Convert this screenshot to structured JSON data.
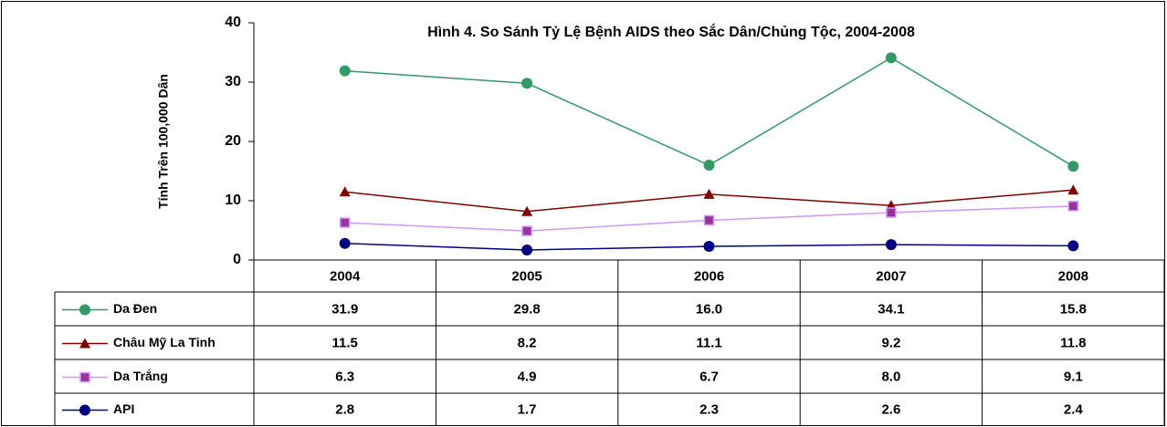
{
  "chart_data": {
    "type": "line",
    "title": "Hình 4. So Sánh Tỷ Lệ Bệnh AIDS theo Sắc Dân/Chủng Tộc, 2004-2008",
    "y_label": "Tính Trên 100,000 Dân",
    "categories": [
      "2004",
      "2005",
      "2006",
      "2007",
      "2008"
    ],
    "ylim": [
      0,
      40
    ],
    "yticks": [
      0,
      10,
      20,
      30,
      40
    ],
    "grid": false,
    "series": [
      {
        "name": "Da Đen",
        "color": "#339966",
        "marker": "circle",
        "marker_color": "#339966",
        "values": [
          31.9,
          29.8,
          16.0,
          34.1,
          15.8
        ],
        "value_labels": [
          "31.9",
          "29.8",
          "16.0",
          "34.1",
          "15.8"
        ]
      },
      {
        "name": "Châu Mỹ La Tinh",
        "color": "#800000",
        "marker": "triangle",
        "marker_color": "#800000",
        "values": [
          11.5,
          8.2,
          11.1,
          9.2,
          11.8
        ],
        "value_labels": [
          "11.5",
          "8.2",
          "11.1",
          "9.2",
          "11.8"
        ]
      },
      {
        "name": "Da Trắng",
        "color": "#cc99ff",
        "marker": "square",
        "marker_color": "#993399",
        "values": [
          6.3,
          4.9,
          6.7,
          8.0,
          9.1
        ],
        "value_labels": [
          "6.3",
          "4.9",
          "6.7",
          "8.0",
          "9.1"
        ]
      },
      {
        "name": "API",
        "color": "#000080",
        "marker": "circle",
        "marker_color": "#000080",
        "values": [
          2.8,
          1.7,
          2.3,
          2.6,
          2.4
        ],
        "value_labels": [
          "2.8",
          "1.7",
          "2.3",
          "2.6",
          "2.4"
        ]
      }
    ]
  }
}
